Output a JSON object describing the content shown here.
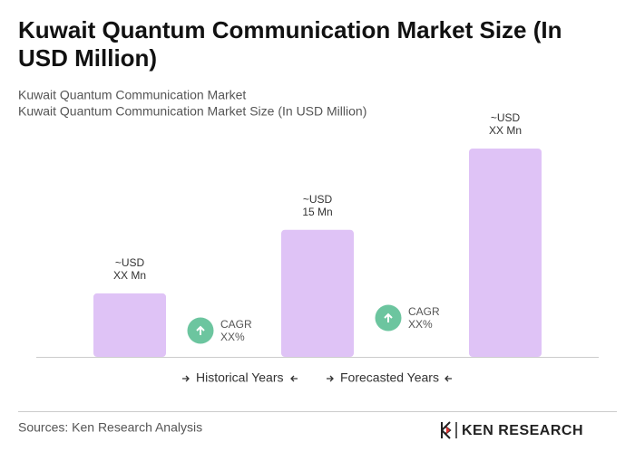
{
  "chart_data": {
    "type": "bar",
    "title": [
      "Kuwait Quantum Communication Market Size (In",
      "USD Million)"
    ],
    "subtitle": [
      "Kuwait Quantum Communication Market",
      "Kuwait Quantum Communication Market Size (In USD Million)"
    ],
    "values": [
      7.5,
      15,
      24.6
    ],
    "value_labels": [
      [
        "~USD",
        "XX Mn"
      ],
      [
        "~USD",
        "15 Mn"
      ],
      [
        "~USD",
        "XX Mn"
      ]
    ],
    "color": "#dfc3f6",
    "annotations": [
      [
        "CAGR",
        "XX%"
      ],
      [
        "CAGR",
        "XX%"
      ]
    ],
    "annotation_color": "#6cc59f",
    "legend": [
      "Historical Years",
      "Forecasted Years"
    ],
    "source": "Sources: Ken Research Analysis",
    "logo": "KEN RESEARCH"
  }
}
